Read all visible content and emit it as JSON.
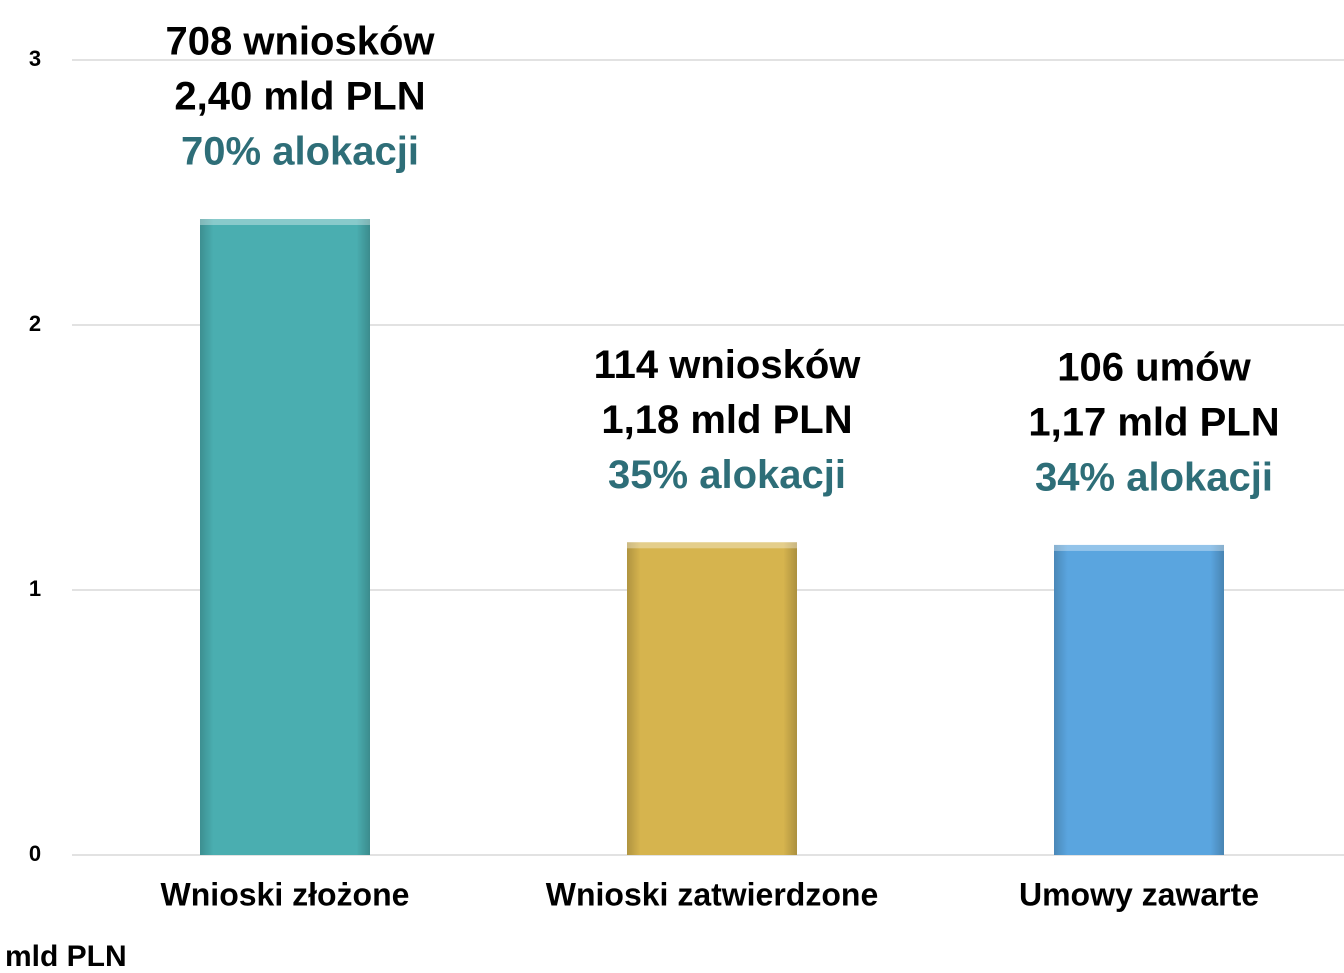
{
  "chart_data": {
    "type": "bar",
    "categories": [
      "Wnioski złożone",
      "Wnioski zatwierdzone",
      "Umowy zawarte"
    ],
    "values": [
      2.4,
      1.18,
      1.17
    ],
    "value_labels": [
      "2,40 mld PLN",
      "1,18 mld PLN",
      "1,17 mld PLN"
    ],
    "count_labels": [
      "708 wniosków",
      "114 wniosków",
      "106 umów"
    ],
    "share_labels": [
      "70% alokacji",
      "35% alokacji",
      "34% alokacji"
    ],
    "colors": [
      "#4aaeb0",
      "#d6b44e",
      "#5aa5df"
    ],
    "y_label": "mld PLN",
    "ylim": [
      0,
      3
    ],
    "yticks": [
      0,
      1,
      2,
      3
    ],
    "grid": true
  }
}
